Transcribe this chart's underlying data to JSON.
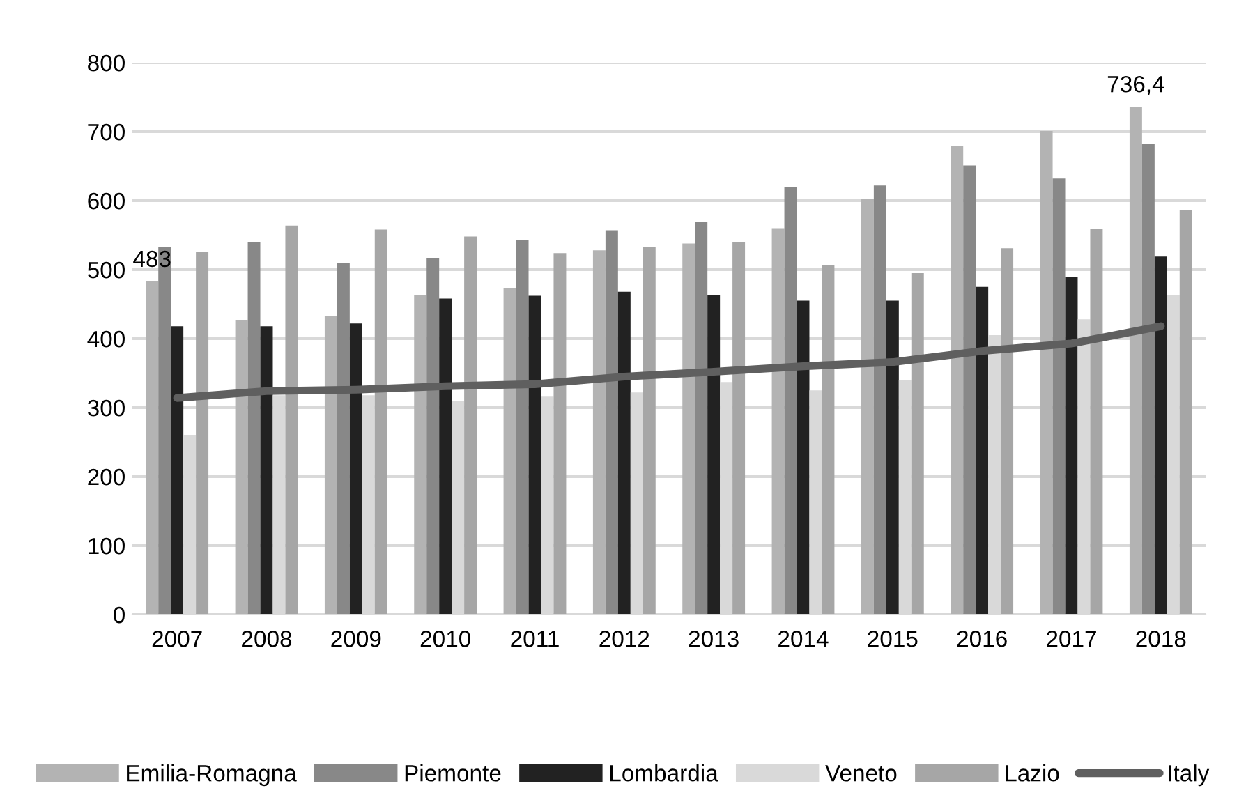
{
  "chart_data": {
    "type": "bar",
    "categories": [
      "2007",
      "2008",
      "2009",
      "2010",
      "2011",
      "2012",
      "2013",
      "2014",
      "2015",
      "2016",
      "2017",
      "2018"
    ],
    "series": [
      {
        "name": "Emilia-Romagna",
        "color": "#b3b3b3",
        "values": [
          483,
          427,
          433,
          463,
          473,
          528,
          538,
          560,
          603,
          679,
          701,
          736.4
        ],
        "value_labels": [
          "483",
          null,
          null,
          null,
          null,
          null,
          null,
          null,
          null,
          null,
          null,
          "736,4"
        ]
      },
      {
        "name": "Piemonte",
        "color": "#888888",
        "values": [
          533,
          540,
          510,
          517,
          543,
          557,
          569,
          620,
          622,
          651,
          632,
          682
        ]
      },
      {
        "name": "Lombardia",
        "color": "#222222",
        "values": [
          418,
          418,
          422,
          458,
          462,
          468,
          463,
          455,
          455,
          475,
          490,
          519
        ]
      },
      {
        "name": "Veneto",
        "color": "#d9d9d9",
        "values": [
          260,
          318,
          318,
          310,
          316,
          322,
          337,
          325,
          340,
          405,
          428,
          463
        ]
      },
      {
        "name": "Lazio",
        "color": "#a6a6a6",
        "values": [
          526,
          564,
          558,
          548,
          524,
          533,
          540,
          506,
          495,
          531,
          559,
          586
        ]
      },
      {
        "name": "Italy",
        "type": "line",
        "color": "#5f5f5f",
        "values": [
          314,
          324,
          326,
          331,
          334,
          345,
          352,
          360,
          366,
          382,
          393,
          418
        ]
      }
    ],
    "ylim": [
      0,
      800
    ],
    "yticks": [
      0,
      100,
      200,
      300,
      400,
      500,
      600,
      700,
      800
    ],
    "grid": "y",
    "legend": "bottom"
  }
}
